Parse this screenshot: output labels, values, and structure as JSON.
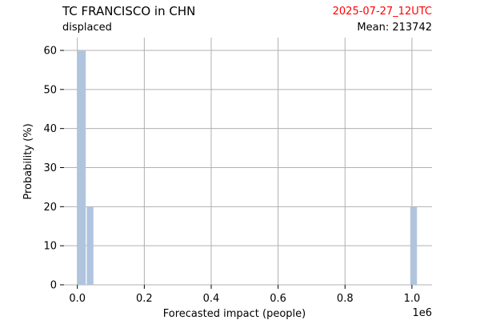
{
  "header": {
    "title": "TC FRANCISCO in CHN",
    "subtitle": "displaced",
    "date": "2025-07-27_12UTC",
    "date_color": "#ff0000",
    "mean_label": "Mean:",
    "mean_value": "213742"
  },
  "chart_data": {
    "type": "bar",
    "xlabel": "Forecasted impact (people)",
    "ylabel": "Probability (%)",
    "x_offset_label": "1e6",
    "x_ticks": [
      0.0,
      0.2,
      0.4,
      0.6,
      0.8,
      1.0
    ],
    "x_tick_labels": [
      "0.0",
      "0.2",
      "0.4",
      "0.6",
      "0.8",
      "1.0"
    ],
    "y_ticks": [
      0,
      10,
      20,
      30,
      40,
      50,
      60
    ],
    "y_tick_labels": [
      "0",
      "10",
      "20",
      "30",
      "40",
      "50",
      "60"
    ],
    "xlim": [
      -0.04,
      1.06
    ],
    "ylim": [
      0,
      60
    ],
    "grid": true,
    "bar_color": "#b0c4de",
    "bars": [
      {
        "x_start": 0.0,
        "x_end": 0.025,
        "value": 60
      },
      {
        "x_start": 0.028,
        "x_end": 0.048,
        "value": 20
      },
      {
        "x_start": 0.995,
        "x_end": 1.015,
        "value": 20
      }
    ]
  }
}
